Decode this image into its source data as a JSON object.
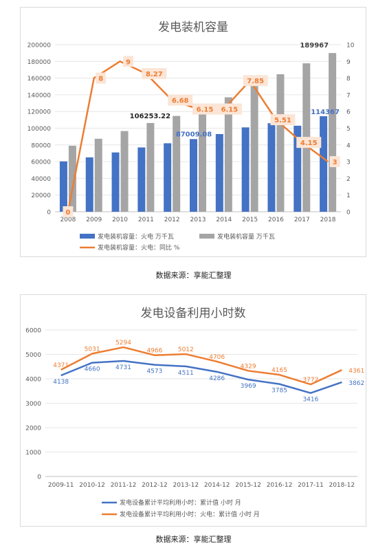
{
  "chart_data": [
    {
      "type": "bar",
      "title": "发电装机容量",
      "categories": [
        "2008",
        "2009",
        "2010",
        "2011",
        "2012",
        "2013",
        "2014",
        "2015",
        "2016",
        "2017",
        "2018"
      ],
      "series": [
        {
          "name": "发电装机容量：火电 万千瓦",
          "type": "bar",
          "axis": "left",
          "values": [
            60300,
            65100,
            71000,
            77000,
            82000,
            87009.08,
            93000,
            101000,
            106000,
            103000,
            114367
          ]
        },
        {
          "name": "发电装机容量 万千瓦",
          "type": "bar",
          "axis": "left",
          "values": [
            79000,
            87400,
            96600,
            106253.22,
            114700,
            124700,
            137000,
            152500,
            164600,
            177700,
            189967
          ]
        },
        {
          "name": "发电装机容量：火电：同比 %",
          "type": "line",
          "axis": "right",
          "values": [
            0,
            8,
            9,
            8.27,
            6.68,
            6.15,
            6.15,
            7.85,
            5.51,
            4.15,
            3
          ]
        }
      ],
      "ylim": [
        0,
        200000
      ],
      "yticks": [
        "0",
        "20000",
        "40000",
        "60000",
        "80000",
        "100000",
        "120000",
        "140000",
        "160000",
        "180000",
        "200000"
      ],
      "y2lim": [
        0,
        10
      ],
      "y2ticks": [
        "0",
        "1",
        "2",
        "3",
        "4",
        "5",
        "6",
        "7",
        "8",
        "9",
        "10"
      ],
      "annotations": {
        "total_2011": "106253.22",
        "thermal_2013": "87009.08",
        "total_2018": "189967",
        "thermal_2018": "114367",
        "growth_labels": [
          "0",
          "8",
          "9",
          "8.27",
          "6.68",
          "6.15",
          "6.15",
          "7.85",
          "5.51",
          "4.15",
          "3"
        ]
      },
      "legend_position": "bottom",
      "colors": {
        "thermal": "#4472C4",
        "total": "#A5A5A5",
        "growth": "#ED7D31",
        "label_box": "#FBE5D6"
      }
    },
    {
      "type": "line",
      "title": "发电设备利用小时数",
      "categories": [
        "2009-11",
        "2010-12",
        "2011-12",
        "2012-12",
        "2013-12",
        "2014-12",
        "2015-12",
        "2016-12",
        "2017-11",
        "2018-12"
      ],
      "series": [
        {
          "name": "发电设备累计平均利用小时：累计值 小时 月",
          "values": [
            4138,
            4660,
            4731,
            4573,
            4511,
            4286,
            3969,
            3785,
            3416,
            3862
          ]
        },
        {
          "name": "发电设备累计平均利用小时：火电：累计值 小时 月",
          "values": [
            4371,
            5031,
            5294,
            4966,
            5012,
            4706,
            4329,
            4165,
            3772,
            4361
          ]
        }
      ],
      "ylim": [
        0,
        6000
      ],
      "yticks": [
        "0",
        "1000",
        "2000",
        "3000",
        "4000",
        "5000",
        "6000"
      ],
      "legend_position": "bottom",
      "colors": {
        "total": "#4472C4",
        "thermal": "#ED7D31"
      }
    }
  ],
  "sources": [
    "数据来源：享能汇整理",
    "数据来源：享能汇整理"
  ]
}
